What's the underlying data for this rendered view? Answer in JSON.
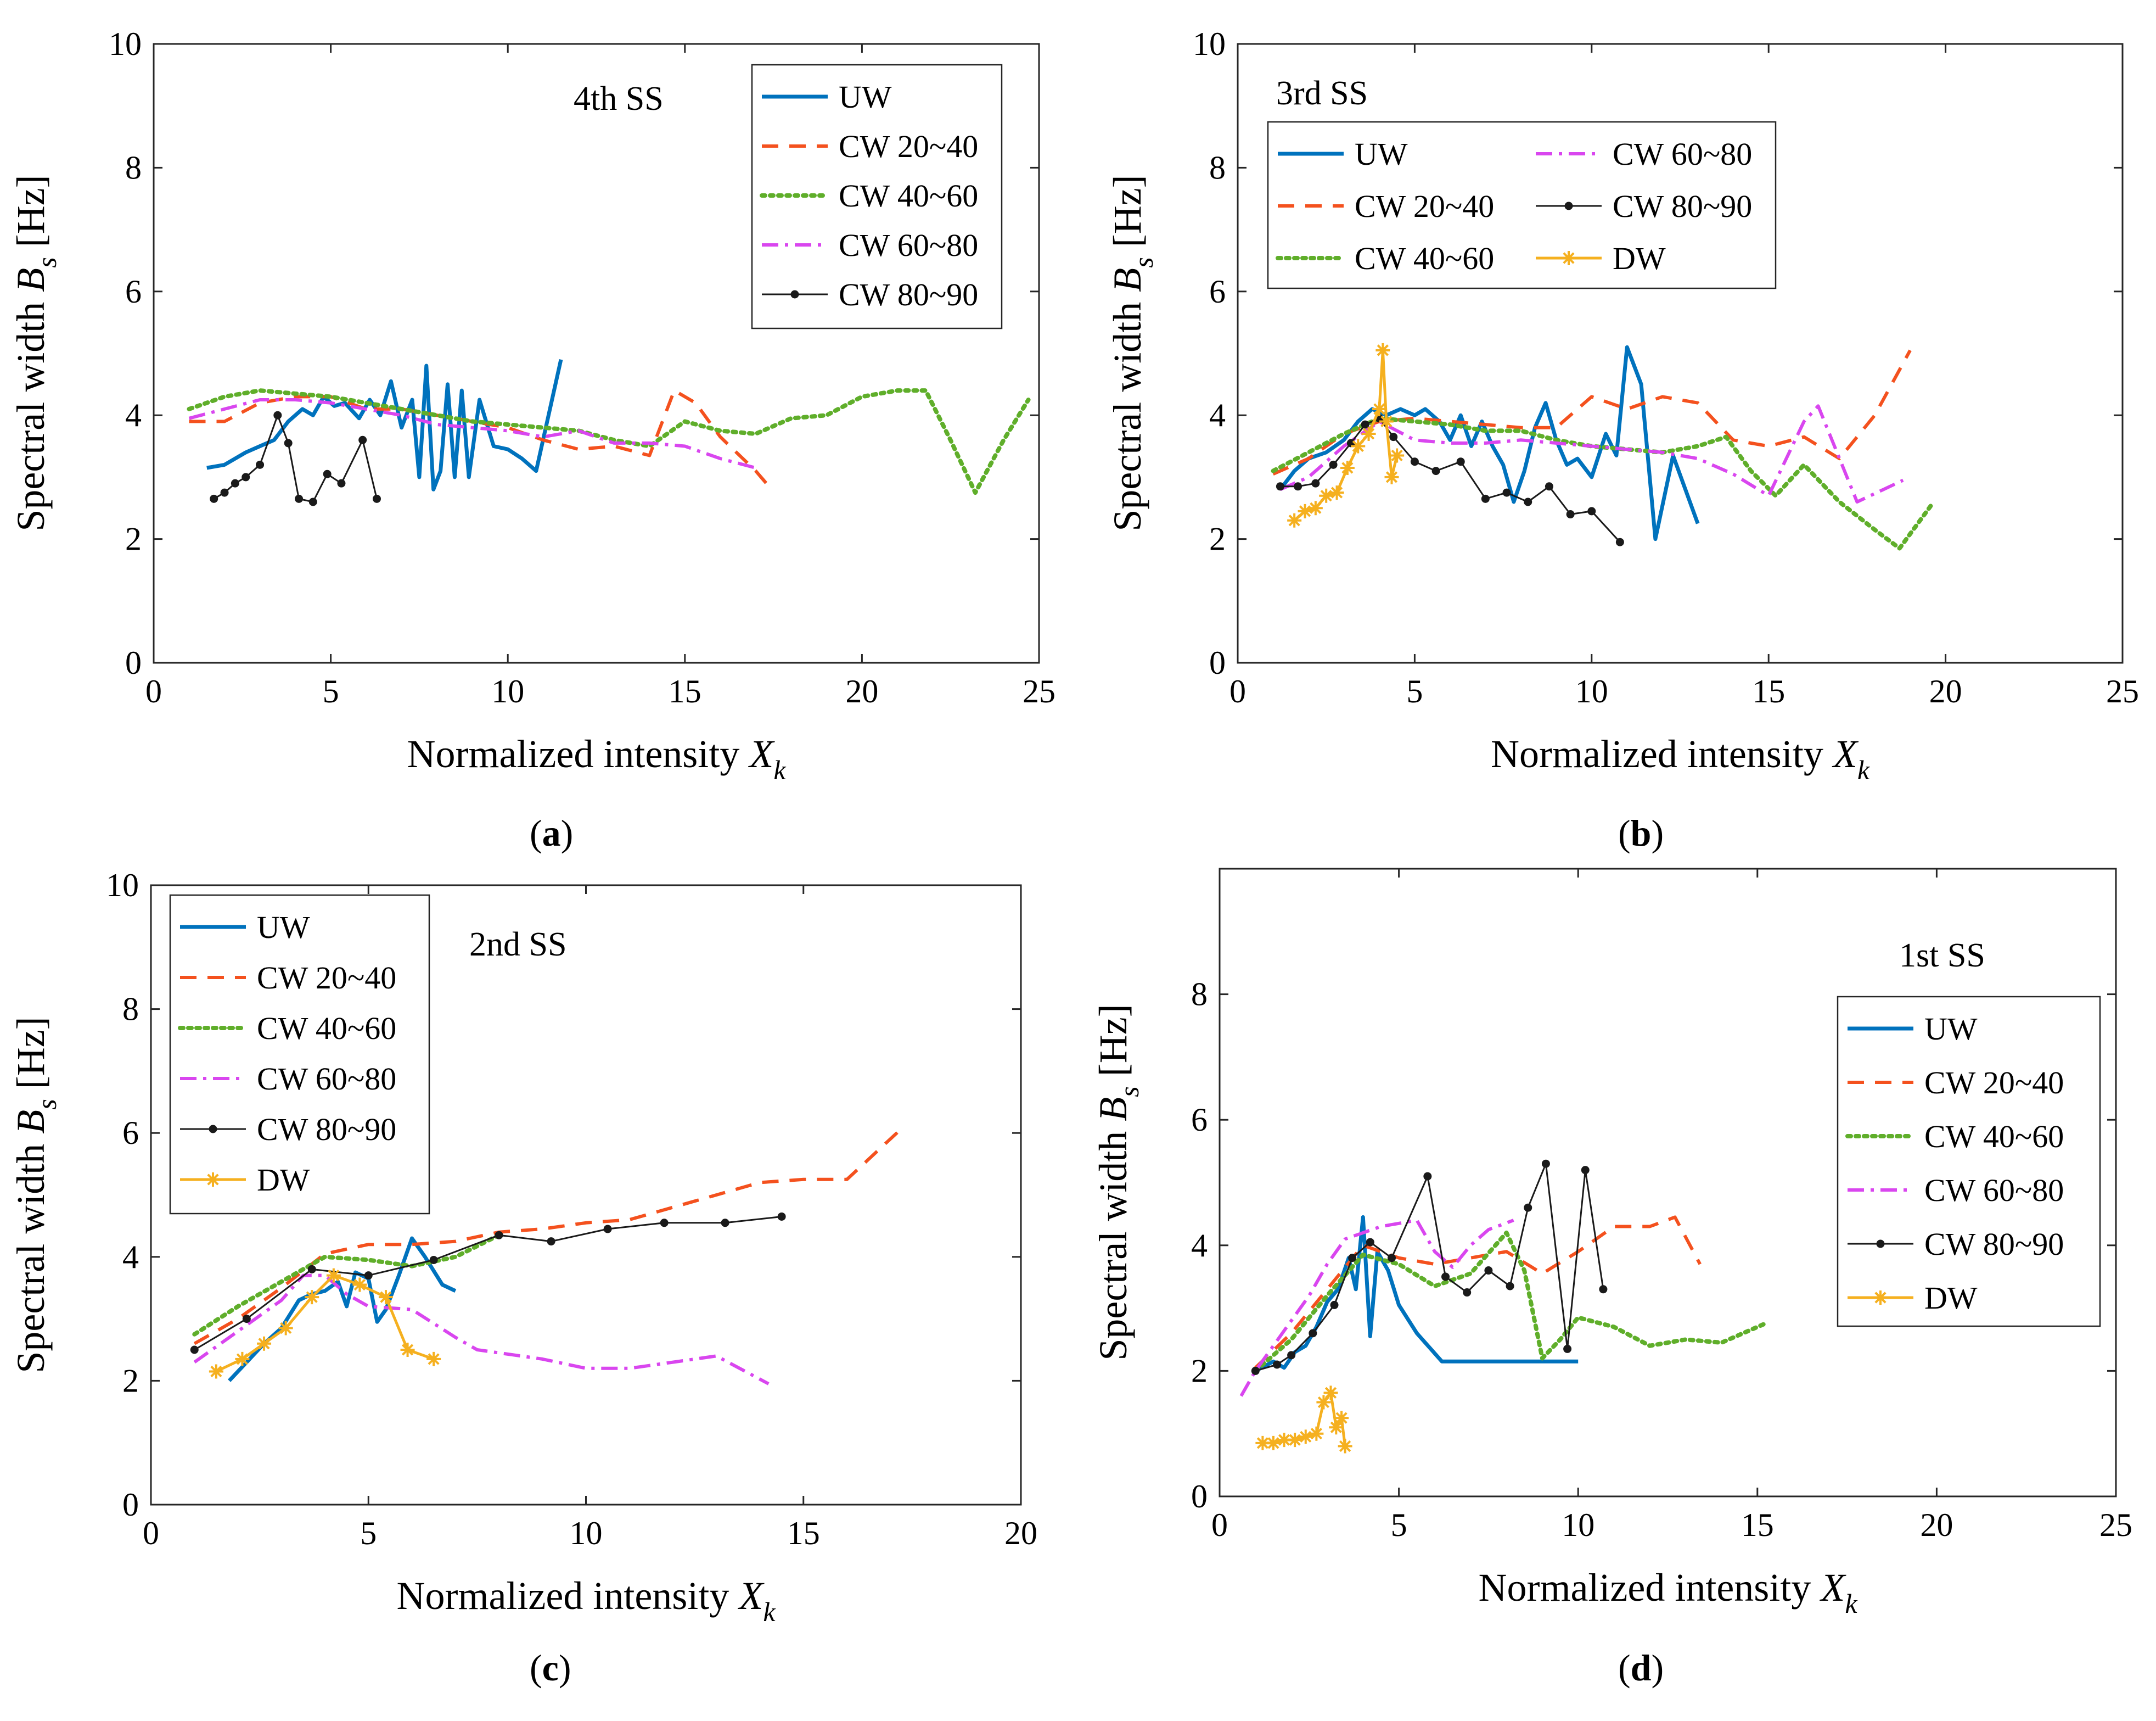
{
  "figure": {
    "captions": [
      "(a)",
      "(b)",
      "(c)",
      "(d)"
    ],
    "xlabel": "Normalized intensity",
    "xlabel_symbol": "X",
    "xlabel_sub": "k",
    "ylabel": "Spectral width",
    "ylabel_symbol": "B",
    "ylabel_sub": "s",
    "ylabel_unit": "[Hz]"
  },
  "series_styles": {
    "UW": {
      "color": "#0072BD",
      "dash": "none",
      "width": 7,
      "marker": "none"
    },
    "CW 20~40": {
      "color": "#F4511E",
      "dash": "30,20",
      "width": 6,
      "marker": "none"
    },
    "CW 40~60": {
      "color": "#5FAE2A",
      "dash": "6,9",
      "width": 8,
      "marker": "none"
    },
    "CW 60~80": {
      "color": "#D946EF",
      "dash": "30,12,6,12",
      "width": 6,
      "marker": "none"
    },
    "CW 80~90": {
      "color": "#1a1a1a",
      "dash": "none",
      "width": 3,
      "marker": "dot"
    },
    "DW": {
      "color": "#F5B01F",
      "dash": "none",
      "width": 5,
      "marker": "star"
    }
  },
  "chart_data": [
    {
      "type": "line",
      "panel": "a",
      "title": "4th SS",
      "xlim": [
        0,
        25
      ],
      "ylim": [
        0,
        10
      ],
      "xticks": [
        "0",
        "5",
        "10",
        "15",
        "20",
        "25"
      ],
      "yticks": [
        "0",
        "2",
        "4",
        "6",
        "8",
        "10"
      ],
      "legend": [
        "UW",
        "CW 20~40",
        "CW 40~60",
        "CW 60~80",
        "CW 80~90"
      ],
      "series": [
        {
          "name": "UW",
          "x": [
            1.5,
            2,
            2.6,
            3,
            3.4,
            3.8,
            4.2,
            4.5,
            4.8,
            5.1,
            5.4,
            5.8,
            6.1,
            6.4,
            6.7,
            7,
            7.3,
            7.5,
            7.7,
            7.9,
            8.1,
            8.3,
            8.5,
            8.7,
            8.9,
            9.2,
            9.6,
            10,
            10.4,
            10.8,
            11.5
          ],
          "y": [
            3.15,
            3.2,
            3.4,
            3.5,
            3.6,
            3.9,
            4.1,
            4.0,
            4.3,
            4.15,
            4.2,
            3.95,
            4.25,
            4.0,
            4.55,
            3.8,
            4.25,
            3.0,
            4.8,
            2.8,
            3.1,
            4.5,
            3.0,
            4.4,
            3.0,
            4.25,
            3.5,
            3.45,
            3.3,
            3.1,
            4.9
          ]
        },
        {
          "name": "CW 20~40",
          "x": [
            1,
            2,
            3,
            4,
            5,
            6,
            7,
            8,
            9,
            10,
            11,
            12,
            13,
            14,
            14.7,
            15.3,
            16,
            17,
            17.3
          ],
          "y": [
            3.9,
            3.9,
            4.2,
            4.3,
            4.3,
            4.1,
            4.1,
            4.0,
            3.9,
            3.8,
            3.6,
            3.45,
            3.5,
            3.35,
            4.4,
            4.2,
            3.65,
            3.1,
            2.9
          ]
        },
        {
          "name": "CW 40~60",
          "x": [
            1,
            2,
            3,
            4,
            5,
            6,
            7,
            8,
            9,
            10,
            11,
            12,
            13,
            14,
            15,
            16,
            17,
            18,
            19,
            20,
            21,
            21.8,
            22.5,
            23.2,
            24,
            24.7
          ],
          "y": [
            4.1,
            4.3,
            4.4,
            4.35,
            4.3,
            4.2,
            4.1,
            4.0,
            3.9,
            3.85,
            3.8,
            3.75,
            3.6,
            3.5,
            3.9,
            3.75,
            3.7,
            3.95,
            4.0,
            4.3,
            4.4,
            4.4,
            3.6,
            2.75,
            3.6,
            4.25
          ]
        },
        {
          "name": "CW 60~80",
          "x": [
            1,
            2,
            3,
            4,
            5,
            6,
            7,
            8,
            9,
            10,
            11,
            12,
            13,
            14,
            15,
            16,
            17
          ],
          "y": [
            3.95,
            4.1,
            4.25,
            4.25,
            4.2,
            4.1,
            4.0,
            3.85,
            3.8,
            3.75,
            3.65,
            3.75,
            3.55,
            3.55,
            3.5,
            3.3,
            3.15
          ]
        },
        {
          "name": "CW 80~90",
          "x": [
            1.7,
            2,
            2.3,
            2.6,
            3,
            3.5,
            3.8,
            4.1,
            4.5,
            4.9,
            5.3,
            5.9,
            6.3
          ],
          "y": [
            2.65,
            2.75,
            2.9,
            3.0,
            3.2,
            4.0,
            3.55,
            2.65,
            2.6,
            3.05,
            2.9,
            3.6,
            2.65
          ]
        }
      ]
    },
    {
      "type": "line",
      "panel": "b",
      "title": "3rd SS",
      "xlim": [
        0,
        25
      ],
      "ylim": [
        0,
        10
      ],
      "xticks": [
        "0",
        "5",
        "10",
        "15",
        "20",
        "25"
      ],
      "yticks": [
        "0",
        "2",
        "4",
        "6",
        "8",
        "10"
      ],
      "legend": [
        "UW",
        "CW 20~40",
        "CW 40~60",
        "CW 60~80",
        "CW 80~90",
        "DW"
      ],
      "series": [
        {
          "name": "UW",
          "x": [
            1.2,
            1.6,
            2,
            2.5,
            3,
            3.4,
            3.8,
            4.2,
            4.6,
            5,
            5.3,
            5.7,
            6,
            6.3,
            6.6,
            6.9,
            7.2,
            7.5,
            7.8,
            8.1,
            8.4,
            8.7,
            9,
            9.3,
            9.6,
            10,
            10.4,
            10.7,
            11,
            11.4,
            11.8,
            12.3,
            13.0
          ],
          "y": [
            2.8,
            3.1,
            3.3,
            3.4,
            3.6,
            3.9,
            4.1,
            4.0,
            4.1,
            4.0,
            4.1,
            3.9,
            3.6,
            4.0,
            3.5,
            3.9,
            3.5,
            3.2,
            2.6,
            3.1,
            3.8,
            4.2,
            3.6,
            3.2,
            3.3,
            3.0,
            3.7,
            3.35,
            5.1,
            4.5,
            2.0,
            3.35,
            2.25
          ]
        },
        {
          "name": "CW 20~40",
          "x": [
            1,
            2,
            3,
            4,
            5,
            6,
            7,
            8,
            9,
            10,
            11,
            12,
            13,
            14,
            15,
            16,
            17,
            18,
            19
          ],
          "y": [
            3.05,
            3.3,
            3.7,
            3.9,
            3.95,
            3.9,
            3.85,
            3.8,
            3.8,
            4.3,
            4.1,
            4.3,
            4.2,
            3.6,
            3.5,
            3.65,
            3.3,
            4.0,
            5.05
          ]
        },
        {
          "name": "CW 40~60",
          "x": [
            1,
            2,
            3,
            4,
            5,
            6,
            7,
            8,
            9,
            10,
            11,
            12,
            13,
            13.8,
            14.5,
            15.2,
            16,
            17,
            18,
            18.7,
            19.6
          ],
          "y": [
            3.1,
            3.4,
            3.7,
            3.95,
            3.9,
            3.85,
            3.75,
            3.75,
            3.6,
            3.5,
            3.45,
            3.4,
            3.5,
            3.65,
            3.1,
            2.7,
            3.2,
            2.6,
            2.15,
            1.85,
            2.55
          ]
        },
        {
          "name": "CW 60~80",
          "x": [
            1.2,
            2,
            3,
            4,
            5,
            6,
            7,
            8,
            9,
            10,
            11,
            12,
            13,
            14,
            15,
            16,
            16.4,
            17.5,
            18.8
          ],
          "y": [
            2.8,
            3.0,
            3.5,
            3.9,
            3.6,
            3.55,
            3.55,
            3.6,
            3.55,
            3.5,
            3.45,
            3.4,
            3.3,
            3.05,
            2.7,
            3.9,
            4.15,
            2.6,
            2.95
          ]
        },
        {
          "name": "CW 80~90",
          "x": [
            1.2,
            1.7,
            2.2,
            2.7,
            3.2,
            3.6,
            4.0,
            4.4,
            5.0,
            5.6,
            6.3,
            7.0,
            7.6,
            8.2,
            8.8,
            9.4,
            10.0,
            10.8
          ],
          "y": [
            2.85,
            2.85,
            2.9,
            3.2,
            3.55,
            3.85,
            3.95,
            3.65,
            3.25,
            3.1,
            3.25,
            2.65,
            2.75,
            2.6,
            2.85,
            2.4,
            2.45,
            1.95
          ]
        },
        {
          "name": "DW",
          "x": [
            1.6,
            1.9,
            2.2,
            2.5,
            2.8,
            3.1,
            3.4,
            3.7,
            4.0,
            4.1,
            4.2,
            4.35,
            4.5
          ],
          "y": [
            2.3,
            2.45,
            2.5,
            2.7,
            2.75,
            3.15,
            3.5,
            3.7,
            4.1,
            5.05,
            3.9,
            3.0,
            3.35
          ]
        }
      ]
    },
    {
      "type": "line",
      "panel": "c",
      "title": "2nd SS",
      "xlim": [
        0,
        20
      ],
      "ylim": [
        0,
        10
      ],
      "xticks": [
        "0",
        "5",
        "10",
        "15",
        "20"
      ],
      "yticks": [
        "0",
        "2",
        "4",
        "6",
        "8",
        "10"
      ],
      "legend": [
        "UW",
        "CW 20~40",
        "CW 40~60",
        "CW 60~80",
        "CW 80~90",
        "DW"
      ],
      "series": [
        {
          "name": "UW",
          "x": [
            1.8,
            2.2,
            2.6,
            3,
            3.4,
            3.7,
            4,
            4.3,
            4.5,
            4.7,
            5,
            5.2,
            5.4,
            5.7,
            6,
            6.3,
            6.7,
            7.0
          ],
          "y": [
            2.0,
            2.3,
            2.6,
            2.85,
            3.3,
            3.4,
            3.45,
            3.6,
            3.2,
            3.75,
            3.65,
            2.95,
            3.15,
            3.7,
            4.3,
            4.0,
            3.55,
            3.45
          ]
        },
        {
          "name": "CW 20~40",
          "x": [
            1,
            2,
            3,
            4,
            5,
            6,
            7,
            8,
            9,
            10,
            11,
            12,
            13,
            14,
            15,
            16,
            17.3
          ],
          "y": [
            2.6,
            3.0,
            3.5,
            4.05,
            4.2,
            4.2,
            4.25,
            4.4,
            4.45,
            4.55,
            4.6,
            4.8,
            5.0,
            5.2,
            5.25,
            5.25,
            6.1
          ]
        },
        {
          "name": "CW 40~60",
          "x": [
            1,
            2,
            3,
            4,
            5,
            6,
            7,
            8
          ],
          "y": [
            2.75,
            3.2,
            3.6,
            4.0,
            3.95,
            3.85,
            4.0,
            4.35
          ]
        },
        {
          "name": "CW 60~80",
          "x": [
            1,
            2,
            3,
            3.5,
            4,
            4.5,
            5,
            6,
            7,
            7.5,
            8,
            9,
            10,
            11,
            12,
            13,
            14.2
          ],
          "y": [
            2.3,
            2.8,
            3.3,
            3.7,
            3.7,
            3.4,
            3.2,
            3.15,
            2.7,
            2.5,
            2.45,
            2.35,
            2.2,
            2.2,
            2.3,
            2.4,
            1.95
          ]
        },
        {
          "name": "CW 80~90",
          "x": [
            1.0,
            2.2,
            3.7,
            5.0,
            6.5,
            8.0,
            9.2,
            10.5,
            11.8,
            13.2,
            14.5
          ],
          "y": [
            2.5,
            3.0,
            3.8,
            3.7,
            3.95,
            4.35,
            4.25,
            4.45,
            4.55,
            4.55,
            4.65
          ]
        },
        {
          "name": "DW",
          "x": [
            1.5,
            2.1,
            2.6,
            3.1,
            3.7,
            4.2,
            4.8,
            5.4,
            5.9,
            6.5
          ],
          "y": [
            2.15,
            2.35,
            2.6,
            2.85,
            3.35,
            3.7,
            3.55,
            3.35,
            2.5,
            2.35
          ]
        }
      ]
    },
    {
      "type": "line",
      "panel": "d",
      "title": "1st SS",
      "xlim": [
        0,
        25
      ],
      "ylim": [
        0,
        10
      ],
      "xticks": [
        "0",
        "5",
        "10",
        "15",
        "20",
        "25"
      ],
      "yticks": [
        "0",
        "2",
        "4",
        "6",
        "8"
      ],
      "legend": [
        "UW",
        "CW 20~40",
        "CW 40~60",
        "CW 60~80",
        "CW 80~90",
        "DW"
      ],
      "series": [
        {
          "name": "UW",
          "x": [
            1,
            1.5,
            1.8,
            2.1,
            2.4,
            2.7,
            3,
            3.3,
            3.6,
            3.8,
            4.0,
            4.2,
            4.4,
            4.7,
            5.0,
            5.5,
            6.2,
            7.0,
            8.0,
            9.0,
            10.0
          ],
          "y": [
            2.0,
            2.15,
            2.05,
            2.3,
            2.4,
            2.7,
            3.1,
            3.3,
            3.8,
            3.3,
            4.45,
            2.55,
            3.9,
            3.6,
            3.05,
            2.6,
            2.15,
            2.15,
            2.15,
            2.15,
            2.15
          ]
        },
        {
          "name": "CW 20~40",
          "x": [
            1,
            2,
            3,
            4,
            5,
            6,
            7,
            8,
            9,
            10,
            11,
            12,
            12.7,
            13.4
          ],
          "y": [
            2.05,
            2.6,
            3.3,
            4.0,
            3.8,
            3.7,
            3.8,
            3.9,
            3.55,
            3.9,
            4.3,
            4.3,
            4.45,
            3.7
          ]
        },
        {
          "name": "CW 40~60",
          "x": [
            1,
            2,
            3,
            4,
            5,
            6,
            7,
            8,
            8.5,
            9,
            9.5,
            10,
            11,
            12,
            13,
            14,
            15.2
          ],
          "y": [
            2.0,
            2.5,
            3.2,
            3.85,
            3.7,
            3.35,
            3.55,
            4.2,
            3.6,
            2.2,
            2.5,
            2.85,
            2.7,
            2.4,
            2.5,
            2.45,
            2.75
          ]
        },
        {
          "name": "CW 60~80",
          "x": [
            0.6,
            1,
            1.5,
            2,
            2.5,
            3,
            3.5,
            4,
            4.5,
            5,
            5.5,
            6,
            6.5,
            7,
            7.5,
            8.2
          ],
          "y": [
            1.6,
            2.0,
            2.4,
            2.8,
            3.2,
            3.7,
            4.1,
            4.2,
            4.3,
            4.35,
            4.4,
            3.9,
            3.65,
            4.0,
            4.25,
            4.4
          ]
        },
        {
          "name": "CW 80~90",
          "x": [
            1.0,
            1.6,
            2.0,
            2.6,
            3.2,
            3.7,
            4.2,
            4.8,
            5.8,
            6.3,
            6.9,
            7.5,
            8.1,
            8.6,
            9.1,
            9.7,
            10.2,
            10.7
          ],
          "y": [
            2.0,
            2.1,
            2.25,
            2.6,
            3.05,
            3.8,
            4.05,
            3.8,
            5.1,
            3.5,
            3.25,
            3.6,
            3.35,
            4.6,
            5.3,
            2.35,
            5.2,
            3.3
          ]
        },
        {
          "name": "DW",
          "x": [
            1.2,
            1.5,
            1.8,
            2.1,
            2.4,
            2.7,
            2.9,
            3.1,
            3.25,
            3.4,
            3.5
          ],
          "y": [
            0.85,
            0.85,
            0.9,
            0.9,
            0.95,
            1.0,
            1.5,
            1.65,
            1.1,
            1.25,
            0.8
          ]
        }
      ]
    }
  ]
}
